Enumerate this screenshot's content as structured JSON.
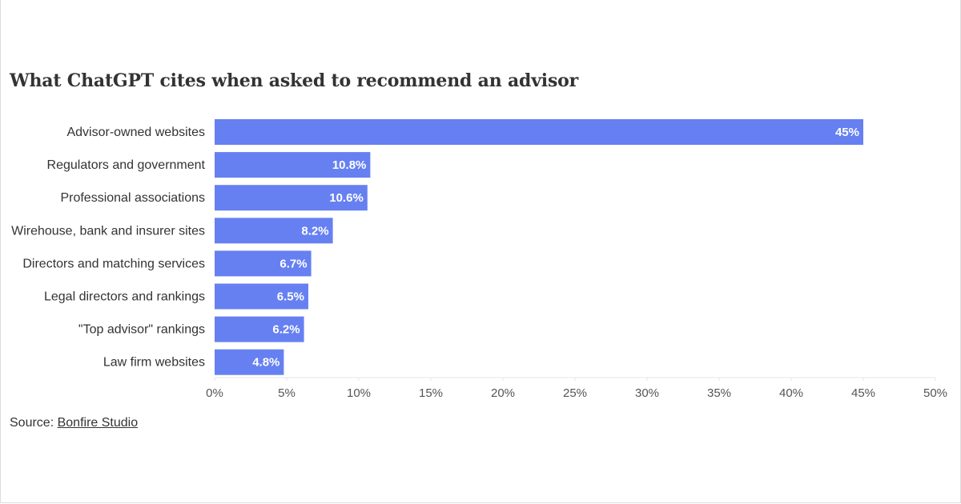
{
  "chart_data": {
    "type": "bar",
    "orientation": "horizontal",
    "title": "What ChatGPT cites when asked to recommend an advisor",
    "categories": [
      "Advisor-owned websites",
      "Regulators and government",
      "Professional associations",
      "Wirehouse, bank and insurer sites",
      "Directors and matching services",
      "Legal directors and rankings",
      "\"Top advisor\" rankings",
      "Law firm websites"
    ],
    "values": [
      45,
      10.8,
      10.6,
      8.2,
      6.7,
      6.5,
      6.2,
      4.8
    ],
    "value_labels": [
      "45%",
      "10.8%",
      "10.6%",
      "8.2%",
      "6.7%",
      "6.5%",
      "6.2%",
      "4.8%"
    ],
    "xlim": [
      0,
      50
    ],
    "x_ticks": [
      0,
      5,
      10,
      15,
      20,
      25,
      30,
      35,
      40,
      45,
      50
    ],
    "x_tick_labels": [
      "0%",
      "5%",
      "10%",
      "15%",
      "20%",
      "25%",
      "30%",
      "35%",
      "40%",
      "45%",
      "50%"
    ],
    "xlabel": "",
    "ylabel": "",
    "grid": false,
    "legend": "none",
    "bar_color": "#6680f2",
    "label_color": "#ffffff"
  },
  "source": {
    "prefix": "Source: ",
    "link_text": "Bonfire Studio"
  }
}
